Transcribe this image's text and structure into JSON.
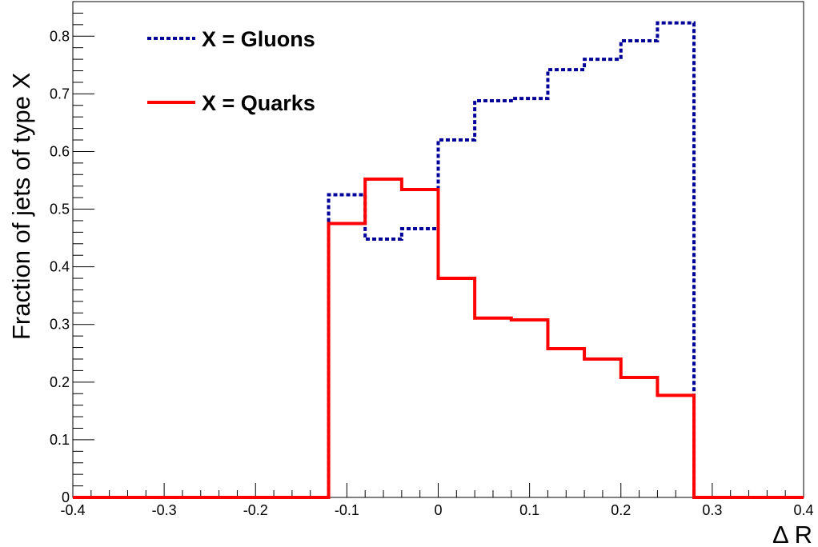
{
  "chart_data": {
    "type": "line",
    "step": true,
    "title": "",
    "xlabel": "Δ R",
    "ylabel": "Fraction of jets of type X",
    "xlim": [
      -0.4,
      0.4
    ],
    "ylim": [
      0,
      0.86
    ],
    "x_ticks": [
      -0.4,
      -0.3,
      -0.2,
      -0.1,
      0,
      0.1,
      0.2,
      0.3,
      0.4
    ],
    "x_tick_labels": [
      "-0.4",
      "-0.3",
      "-0.2",
      "-0.1",
      "0",
      "0.1",
      "0.2",
      "0.3",
      "0.4"
    ],
    "y_ticks": [
      0,
      0.1,
      0.2,
      0.3,
      0.4,
      0.5,
      0.6,
      0.7,
      0.8
    ],
    "y_tick_labels": [
      "0",
      "0.1",
      "0.2",
      "0.3",
      "0.4",
      "0.5",
      "0.6",
      "0.7",
      "0.8"
    ],
    "grid": false,
    "legend_position": "top-left",
    "bin_edges": [
      -0.4,
      -0.36,
      -0.32,
      -0.28,
      -0.24,
      -0.2,
      -0.16,
      -0.12,
      -0.08,
      -0.04,
      0,
      0.04,
      0.08,
      0.12,
      0.16,
      0.2,
      0.24,
      0.28,
      0.32,
      0.36,
      0.4
    ],
    "series": [
      {
        "name": "X = Gluons",
        "color": "#000099",
        "style": "dotted",
        "values": [
          0,
          0,
          0,
          0,
          0,
          0,
          0,
          0.525,
          0.448,
          0.466,
          0.62,
          0.688,
          0.692,
          0.742,
          0.76,
          0.792,
          0.823,
          0,
          0,
          0
        ]
      },
      {
        "name": "X = Quarks",
        "color": "#ff0000",
        "style": "solid",
        "values": [
          0,
          0,
          0,
          0,
          0,
          0,
          0,
          0.475,
          0.552,
          0.534,
          0.38,
          0.311,
          0.308,
          0.258,
          0.24,
          0.208,
          0.177,
          0,
          0,
          0
        ]
      }
    ]
  }
}
